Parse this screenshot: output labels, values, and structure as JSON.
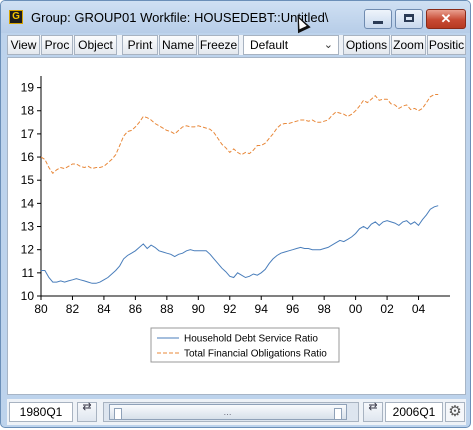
{
  "window": {
    "app_badge": "G",
    "title": "Group: GROUP01   Workfile: HOUSEDEBT::Untitled\\",
    "controls": {
      "minimize": "minimize",
      "maximize": "maximize",
      "close": "✕"
    }
  },
  "toolbar": {
    "view": "View",
    "proc": "Proc",
    "object": "Object",
    "print": "Print",
    "name": "Name",
    "freeze": "Freeze",
    "display_mode": "Default",
    "options": "Options",
    "zoom": "Zoom",
    "position": "Positic"
  },
  "statusbar": {
    "start_date": "1980Q1",
    "end_date": "2006Q1"
  },
  "chart_data": {
    "type": "line",
    "title": "",
    "xlabel": "",
    "ylabel": "",
    "ylim": [
      10,
      19.5
    ],
    "xlim": [
      1980,
      2006
    ],
    "y_ticks": [
      "10",
      "11",
      "12",
      "13",
      "14",
      "15",
      "16",
      "17",
      "18",
      "19"
    ],
    "x_ticks": [
      "80",
      "82",
      "84",
      "86",
      "88",
      "90",
      "92",
      "94",
      "96",
      "98",
      "00",
      "02",
      "04"
    ],
    "grid": false,
    "legend_position": "bottom-center",
    "series": [
      {
        "name": "Household Debt Service Ratio",
        "color": "#4a7ebb",
        "style": "solid",
        "points": [
          [
            1980.0,
            11.1
          ],
          [
            1980.25,
            11.1
          ],
          [
            1980.5,
            10.8
          ],
          [
            1980.75,
            10.6
          ],
          [
            1981.0,
            10.6
          ],
          [
            1981.25,
            10.65
          ],
          [
            1981.5,
            10.6
          ],
          [
            1981.75,
            10.65
          ],
          [
            1982.0,
            10.7
          ],
          [
            1982.25,
            10.75
          ],
          [
            1982.5,
            10.7
          ],
          [
            1982.75,
            10.65
          ],
          [
            1983.0,
            10.6
          ],
          [
            1983.25,
            10.55
          ],
          [
            1983.5,
            10.55
          ],
          [
            1983.75,
            10.6
          ],
          [
            1984.0,
            10.7
          ],
          [
            1984.25,
            10.8
          ],
          [
            1984.5,
            10.95
          ],
          [
            1984.75,
            11.1
          ],
          [
            1985.0,
            11.3
          ],
          [
            1985.25,
            11.6
          ],
          [
            1985.5,
            11.75
          ],
          [
            1985.75,
            11.85
          ],
          [
            1986.0,
            11.95
          ],
          [
            1986.25,
            12.1
          ],
          [
            1986.5,
            12.25
          ],
          [
            1986.75,
            12.05
          ],
          [
            1987.0,
            12.2
          ],
          [
            1987.25,
            12.1
          ],
          [
            1987.5,
            11.95
          ],
          [
            1987.75,
            11.9
          ],
          [
            1988.0,
            11.85
          ],
          [
            1988.25,
            11.8
          ],
          [
            1988.5,
            11.7
          ],
          [
            1988.75,
            11.8
          ],
          [
            1989.0,
            11.85
          ],
          [
            1989.25,
            11.95
          ],
          [
            1989.5,
            12.0
          ],
          [
            1989.75,
            11.95
          ],
          [
            1990.0,
            11.95
          ],
          [
            1990.25,
            11.95
          ],
          [
            1990.5,
            11.95
          ],
          [
            1990.75,
            11.8
          ],
          [
            1991.0,
            11.6
          ],
          [
            1991.25,
            11.4
          ],
          [
            1991.5,
            11.2
          ],
          [
            1991.75,
            11.05
          ],
          [
            1992.0,
            10.85
          ],
          [
            1992.25,
            10.8
          ],
          [
            1992.5,
            11.0
          ],
          [
            1992.75,
            10.9
          ],
          [
            1993.0,
            10.8
          ],
          [
            1993.25,
            10.85
          ],
          [
            1993.5,
            10.95
          ],
          [
            1993.75,
            10.9
          ],
          [
            1994.0,
            11.0
          ],
          [
            1994.25,
            11.15
          ],
          [
            1994.5,
            11.4
          ],
          [
            1994.75,
            11.6
          ],
          [
            1995.0,
            11.75
          ],
          [
            1995.25,
            11.85
          ],
          [
            1995.5,
            11.9
          ],
          [
            1995.75,
            11.95
          ],
          [
            1996.0,
            12.0
          ],
          [
            1996.25,
            12.05
          ],
          [
            1996.5,
            12.1
          ],
          [
            1996.75,
            12.05
          ],
          [
            1997.0,
            12.05
          ],
          [
            1997.25,
            12.0
          ],
          [
            1997.5,
            12.0
          ],
          [
            1997.75,
            12.0
          ],
          [
            1998.0,
            12.05
          ],
          [
            1998.25,
            12.1
          ],
          [
            1998.5,
            12.2
          ],
          [
            1998.75,
            12.3
          ],
          [
            1999.0,
            12.4
          ],
          [
            1999.25,
            12.35
          ],
          [
            1999.5,
            12.45
          ],
          [
            1999.75,
            12.55
          ],
          [
            2000.0,
            12.7
          ],
          [
            2000.25,
            12.9
          ],
          [
            2000.5,
            13.0
          ],
          [
            2000.75,
            12.9
          ],
          [
            2001.0,
            13.1
          ],
          [
            2001.25,
            13.2
          ],
          [
            2001.5,
            13.05
          ],
          [
            2001.75,
            13.2
          ],
          [
            2002.0,
            13.25
          ],
          [
            2002.25,
            13.2
          ],
          [
            2002.5,
            13.15
          ],
          [
            2002.75,
            13.05
          ],
          [
            2003.0,
            13.2
          ],
          [
            2003.25,
            13.25
          ],
          [
            2003.5,
            13.1
          ],
          [
            2003.75,
            13.2
          ],
          [
            2004.0,
            13.05
          ],
          [
            2004.25,
            13.3
          ],
          [
            2004.5,
            13.5
          ],
          [
            2004.75,
            13.75
          ],
          [
            2005.0,
            13.85
          ],
          [
            2005.25,
            13.9
          ]
        ]
      },
      {
        "name": "Total Financial Obligations Ratio",
        "color": "#e8883a",
        "style": "dashed",
        "points": [
          [
            1980.0,
            16.0
          ],
          [
            1980.25,
            15.9
          ],
          [
            1980.5,
            15.55
          ],
          [
            1980.75,
            15.3
          ],
          [
            1981.0,
            15.45
          ],
          [
            1981.25,
            15.55
          ],
          [
            1981.5,
            15.5
          ],
          [
            1981.75,
            15.6
          ],
          [
            1982.0,
            15.7
          ],
          [
            1982.25,
            15.7
          ],
          [
            1982.5,
            15.6
          ],
          [
            1982.75,
            15.55
          ],
          [
            1983.0,
            15.6
          ],
          [
            1983.25,
            15.5
          ],
          [
            1983.5,
            15.55
          ],
          [
            1983.75,
            15.55
          ],
          [
            1984.0,
            15.6
          ],
          [
            1984.25,
            15.75
          ],
          [
            1984.5,
            15.9
          ],
          [
            1984.75,
            16.1
          ],
          [
            1985.0,
            16.5
          ],
          [
            1985.25,
            16.9
          ],
          [
            1985.5,
            17.1
          ],
          [
            1985.75,
            17.15
          ],
          [
            1986.0,
            17.3
          ],
          [
            1986.25,
            17.5
          ],
          [
            1986.5,
            17.75
          ],
          [
            1986.75,
            17.7
          ],
          [
            1987.0,
            17.6
          ],
          [
            1987.25,
            17.45
          ],
          [
            1987.5,
            17.35
          ],
          [
            1987.75,
            17.25
          ],
          [
            1988.0,
            17.15
          ],
          [
            1988.25,
            17.1
          ],
          [
            1988.5,
            17.0
          ],
          [
            1988.75,
            17.15
          ],
          [
            1989.0,
            17.3
          ],
          [
            1989.25,
            17.35
          ],
          [
            1989.5,
            17.3
          ],
          [
            1989.75,
            17.3
          ],
          [
            1990.0,
            17.35
          ],
          [
            1990.25,
            17.3
          ],
          [
            1990.5,
            17.25
          ],
          [
            1990.75,
            17.2
          ],
          [
            1991.0,
            17.05
          ],
          [
            1991.25,
            16.8
          ],
          [
            1991.5,
            16.55
          ],
          [
            1991.75,
            16.4
          ],
          [
            1992.0,
            16.2
          ],
          [
            1992.25,
            16.35
          ],
          [
            1992.5,
            16.2
          ],
          [
            1992.75,
            16.1
          ],
          [
            1993.0,
            16.2
          ],
          [
            1993.25,
            16.15
          ],
          [
            1993.5,
            16.3
          ],
          [
            1993.75,
            16.5
          ],
          [
            1994.0,
            16.5
          ],
          [
            1994.25,
            16.6
          ],
          [
            1994.5,
            16.8
          ],
          [
            1994.75,
            17.0
          ],
          [
            1995.0,
            17.25
          ],
          [
            1995.25,
            17.4
          ],
          [
            1995.5,
            17.45
          ],
          [
            1995.75,
            17.45
          ],
          [
            1996.0,
            17.5
          ],
          [
            1996.25,
            17.55
          ],
          [
            1996.5,
            17.6
          ],
          [
            1996.75,
            17.6
          ],
          [
            1997.0,
            17.55
          ],
          [
            1997.25,
            17.6
          ],
          [
            1997.5,
            17.5
          ],
          [
            1997.75,
            17.5
          ],
          [
            1998.0,
            17.55
          ],
          [
            1998.25,
            17.6
          ],
          [
            1998.5,
            17.8
          ],
          [
            1998.75,
            17.95
          ],
          [
            1999.0,
            17.9
          ],
          [
            1999.25,
            17.85
          ],
          [
            1999.5,
            17.75
          ],
          [
            1999.75,
            17.85
          ],
          [
            2000.0,
            18.0
          ],
          [
            2000.25,
            18.2
          ],
          [
            2000.5,
            18.45
          ],
          [
            2000.75,
            18.35
          ],
          [
            2001.0,
            18.5
          ],
          [
            2001.25,
            18.65
          ],
          [
            2001.5,
            18.45
          ],
          [
            2001.75,
            18.5
          ],
          [
            2002.0,
            18.5
          ],
          [
            2002.25,
            18.3
          ],
          [
            2002.5,
            18.25
          ],
          [
            2002.75,
            18.1
          ],
          [
            2003.0,
            18.2
          ],
          [
            2003.25,
            18.25
          ],
          [
            2003.5,
            18.05
          ],
          [
            2003.75,
            18.1
          ],
          [
            2004.0,
            18.0
          ],
          [
            2004.25,
            18.1
          ],
          [
            2004.5,
            18.35
          ],
          [
            2004.75,
            18.6
          ],
          [
            2005.0,
            18.7
          ],
          [
            2005.25,
            18.7
          ]
        ]
      }
    ]
  }
}
